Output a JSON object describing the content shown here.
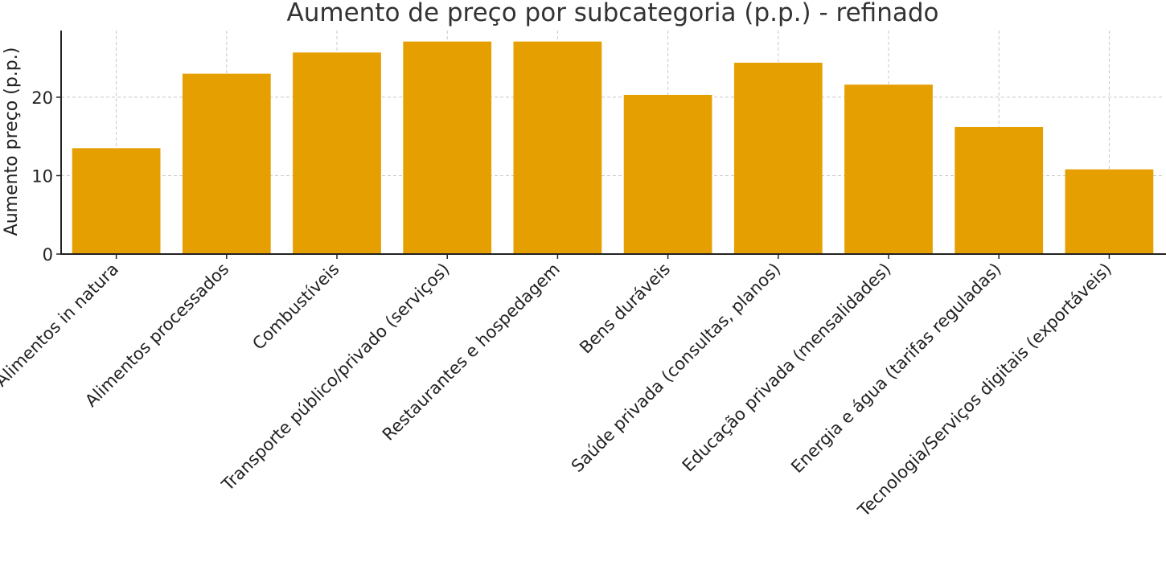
{
  "chart_data": {
    "type": "bar",
    "title": "Aumento de preço por subcategoria (p.p.) - refinado",
    "xlabel": "",
    "ylabel": "Aumento preço (p.p.)",
    "categories": [
      "Alimentos in natura",
      "Alimentos processados",
      "Combustíveis",
      "Transporte público/privado (serviços)",
      "Restaurantes e hospedagem",
      "Bens duráveis",
      "Saúde privada (consultas, planos)",
      "Educação privada (mensalidades)",
      "Energia e água (tarifas reguladas)",
      "Tecnologia/Serviços digitais (exportáveis)"
    ],
    "values": [
      13.5,
      23.0,
      25.7,
      27.1,
      27.1,
      20.3,
      24.4,
      21.6,
      16.2,
      10.8
    ],
    "ylim": [
      0,
      28.5
    ],
    "yticks": [
      0,
      10,
      20
    ],
    "bar_color": "#E69F00",
    "grid": true
  }
}
